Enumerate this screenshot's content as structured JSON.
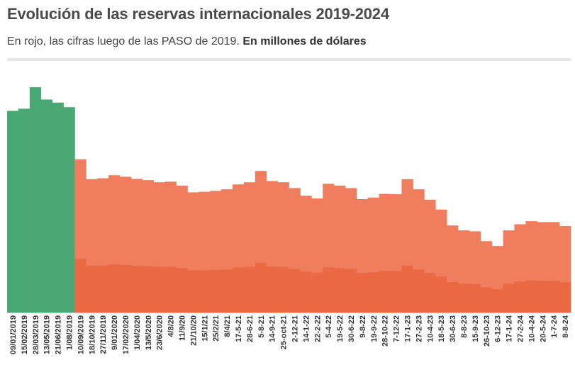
{
  "header": {
    "title": "Evolución de las reservas internacionales 2019-2024",
    "subtitle": "En rojo, las cifras luego de las PASO de 2019.",
    "subtitle_bold": "En millones de dólares"
  },
  "colors": {
    "pre_paso": "#4aa874",
    "post_paso": "#ef7d5e",
    "post_paso_dark": "#e8572f",
    "axis": "#cccccc",
    "tick_text": "#333333"
  },
  "chart_data": {
    "type": "bar",
    "title": "Evolución de las reservas internacionales 2019-2024",
    "subtitle": "En rojo, las cifras luego de las PASO de 2019. En millones de dólares",
    "xlabel": "",
    "ylabel": "",
    "ylim": [
      0,
      80000
    ],
    "grid": false,
    "legend": "none",
    "series": [
      {
        "color": "#4aa874",
        "x": [
          "09/01/2019",
          "15/02/2019",
          "28/03/2019",
          "13/05/2019",
          "21/06/2019",
          "1/08/2019"
        ],
        "values": [
          65800,
          66500,
          73500,
          69500,
          68500,
          67000
        ]
      },
      {
        "color": "#ef7d5e",
        "x": [
          "10/09/2019",
          "18/10/2019",
          "27/11/2019",
          "9/01/2020",
          "17/02/2020",
          "1/04/2020",
          "13/5/2020",
          "23/6/2020",
          "4/8/20",
          "11/9/20",
          "21/10/20",
          "15/1/21",
          "25/2/21",
          "8/4/21",
          "17-5-21",
          "28-6-21",
          "5-8-21",
          "14-9-21",
          "25-oct-21",
          "2-12-21",
          "14-1-22",
          "22-2-22",
          "5-4-22",
          "19-5-22",
          "30-6-22",
          "9-8-22",
          "19-9-22",
          "28-10-22",
          "7-12-22",
          "17-1-23",
          "27-2-23",
          "10-4-23",
          "18-5-23",
          "30-6-23",
          "8-8-23",
          "15-9-23",
          "26-10-23",
          "6-12-23",
          "17-1-24",
          "27-2-24",
          "10-4-24",
          "20-5-24",
          "1-7-24",
          "8-8-24"
        ],
        "values": [
          50000,
          43500,
          43800,
          44800,
          44300,
          43600,
          43200,
          42500,
          42700,
          41400,
          39200,
          39400,
          39700,
          40200,
          41800,
          42500,
          46200,
          42900,
          42500,
          40600,
          38100,
          37200,
          42000,
          41400,
          40600,
          37000,
          37500,
          38700,
          38600,
          43500,
          40200,
          36800,
          33600,
          28400,
          26800,
          26500,
          23300,
          21700,
          26800,
          28800,
          29800,
          29500,
          29500,
          28200
        ]
      }
    ],
    "tick_labels": [
      "09/01/2019",
      "15/02/2019",
      "28/03/2019",
      "13/05/2019",
      "21/06/2019",
      "1/08/2019",
      "10/09/2019",
      "18/10/2019",
      "27/11/2019",
      "9/01/2020",
      "17/02/2020",
      "1/04/2020",
      "13/5/2020",
      "23/6/2020",
      "4/8/20",
      "11/9/20",
      "21/10/20",
      "15/1/21",
      "25/2/21",
      "8/4/21",
      "17-5-21",
      "28-6-21",
      "5-8-21",
      "14-9-21",
      "25-oct-21",
      "2-12-21",
      "14-1-22",
      "22-2-22",
      "5-4-22",
      "19-5-22",
      "30-6-22",
      "9-8-22",
      "19-9-22",
      "28-10-22",
      "7-12-22",
      "17-1-23",
      "27-2-23",
      "10-4-23",
      "18-5-23",
      "30-6-23",
      "8-8-23",
      "15-9-23",
      "26-10-23",
      "6-12-23",
      "17-1-24",
      "27-2-24",
      "10-4-24",
      "20-5-24",
      "1-7-24",
      "8-8-24"
    ]
  }
}
